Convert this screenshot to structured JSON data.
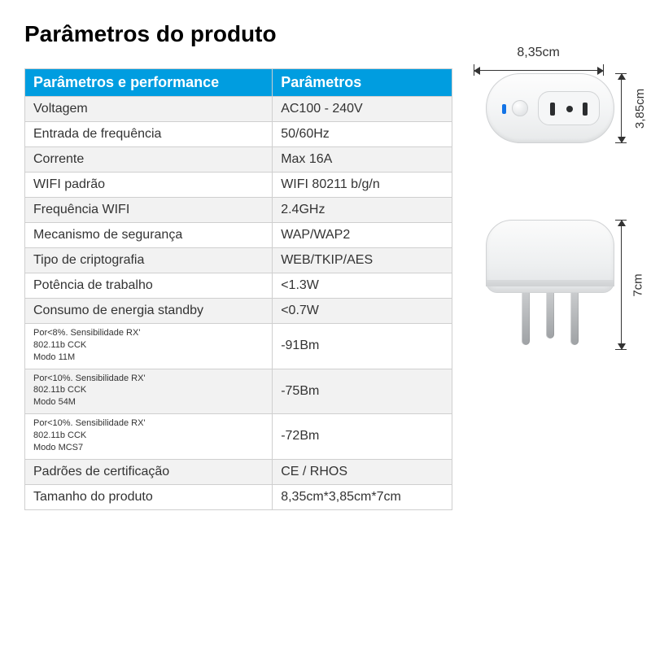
{
  "title": "Parâmetros do produto",
  "table": {
    "header_bg": "#009de0",
    "header_fg": "#ffffff",
    "border_color": "#cfcfcf",
    "alt_bg": "#f2f2f2",
    "columns": [
      "Parâmetros e performance",
      "Parâmetros"
    ],
    "rows": [
      {
        "alt": true,
        "label": "Voltagem",
        "value": "AC100 - 240V"
      },
      {
        "alt": false,
        "label": "Entrada de frequência",
        "value": "50/60Hz"
      },
      {
        "alt": true,
        "label": "Corrente",
        "value": "Max 16A"
      },
      {
        "alt": false,
        "label": "WIFI padrão",
        "value": "WIFI 80211 b/g/n"
      },
      {
        "alt": true,
        "label": "Frequência WIFI",
        "value": "2.4GHz"
      },
      {
        "alt": false,
        "label": "Mecanismo de segurança",
        "value": "WAP/WAP2"
      },
      {
        "alt": true,
        "label": "Tipo de criptografia",
        "value": "WEB/TKIP/AES"
      },
      {
        "alt": false,
        "label": "Potência de trabalho",
        "value": "<1.3W"
      },
      {
        "alt": true,
        "label": "Consumo de energia standby",
        "value": "<0.7W"
      },
      {
        "alt": false,
        "multiline": true,
        "label_lines": [
          "Por<8%. Sensibilidade RX'",
          "802.11b CCK",
          "Modo 11M"
        ],
        "value": "-91Bm"
      },
      {
        "alt": true,
        "multiline": true,
        "label_lines": [
          "Por<10%. Sensibilidade RX'",
          "802.11b CCK",
          "Modo 54M"
        ],
        "value": "-75Bm"
      },
      {
        "alt": false,
        "multiline": true,
        "label_lines": [
          "Por<10%. Sensibilidade RX'",
          "802.11b CCK",
          "Modo MCS7"
        ],
        "value": "-72Bm"
      },
      {
        "alt": true,
        "label": "Padrões de certificação",
        "value": "CE / RHOS"
      },
      {
        "alt": false,
        "label": "Tamanho do produto",
        "value": "8,35cm*3,85cm*7cm"
      }
    ]
  },
  "dimensions": {
    "width": "8,35cm",
    "height": "3,85cm",
    "depth": "7cm",
    "line_color": "#333333"
  },
  "illustration": {
    "body_fill_top": "#fdfdfd",
    "body_fill_bottom": "#e7e9ea",
    "body_border": "#d0d2d4",
    "led_color": "#1273e6",
    "slot_color": "#2b2d2f",
    "pin_fill_top": "#c9cbcd",
    "pin_fill_bottom": "#9fa2a5"
  }
}
